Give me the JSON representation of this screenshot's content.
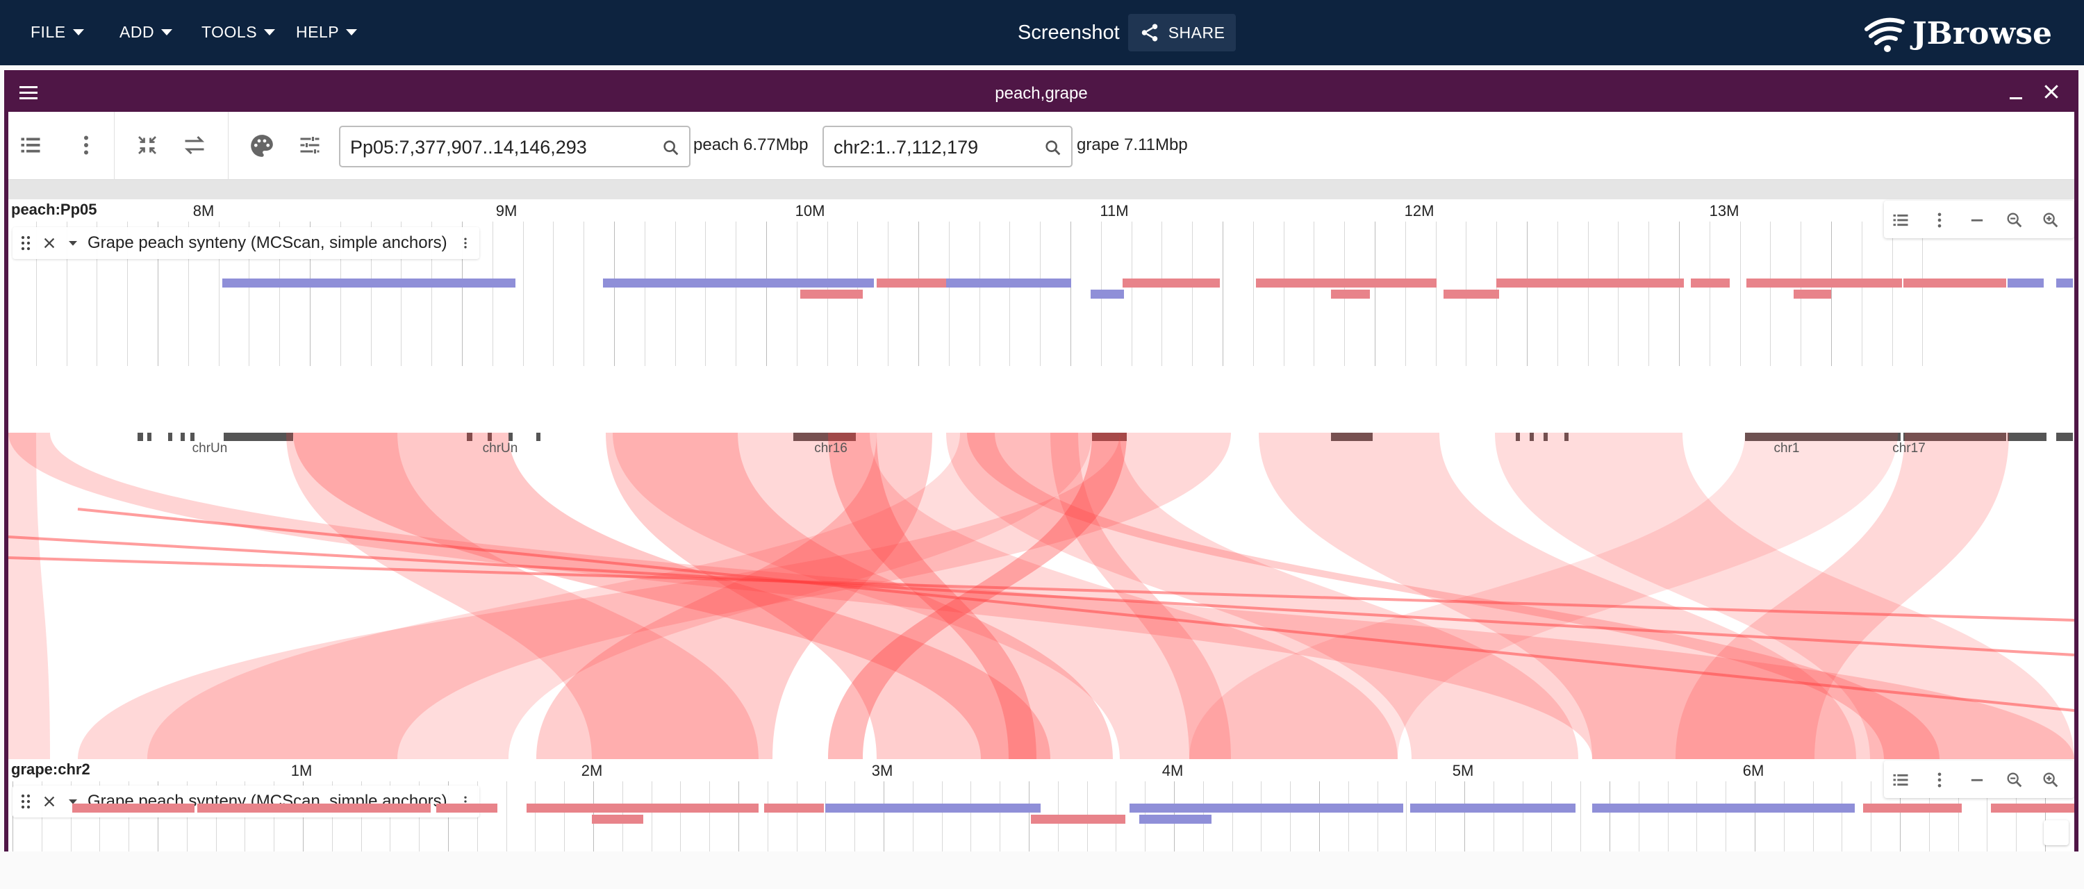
{
  "app": {
    "menu": [
      "FILE",
      "ADD",
      "TOOLS",
      "HELP"
    ],
    "session_name": "Screenshot",
    "share_label": "SHARE",
    "logo_text": "JBrowse"
  },
  "view": {
    "title": "peach,grape",
    "top_locstring": "Pp05:7,377,907..14,146,293",
    "top_assembly": "peach 6.77Mbp",
    "bottom_locstring": "chr2:1..7,112,179",
    "bottom_assembly": "grape 7.11Mbp"
  },
  "top": {
    "ruler_name": "peach:Pp05",
    "ticks": [
      "8M",
      "9M",
      "10M",
      "11M",
      "12M",
      "13M"
    ],
    "track_label": "Grape peach synteny (MCScan, simple anchors)"
  },
  "synteny_labels": [
    "chrUn",
    "chrUn",
    "chr16",
    "chr1",
    "chr17"
  ],
  "bottom": {
    "ruler_name": "grape:chr2",
    "ticks": [
      "1M",
      "2M",
      "3M",
      "4M",
      "5M",
      "6M"
    ],
    "track_label": "Grape peach synteny (MCScan, simple anchors)"
  },
  "colors": {
    "appbar": "#0d233f",
    "view_border": "#4f1646",
    "feature_forward": "#8f8fd8",
    "feature_reverse": "#e8838a",
    "synteny_ribbon": "#ff3b3b"
  }
}
